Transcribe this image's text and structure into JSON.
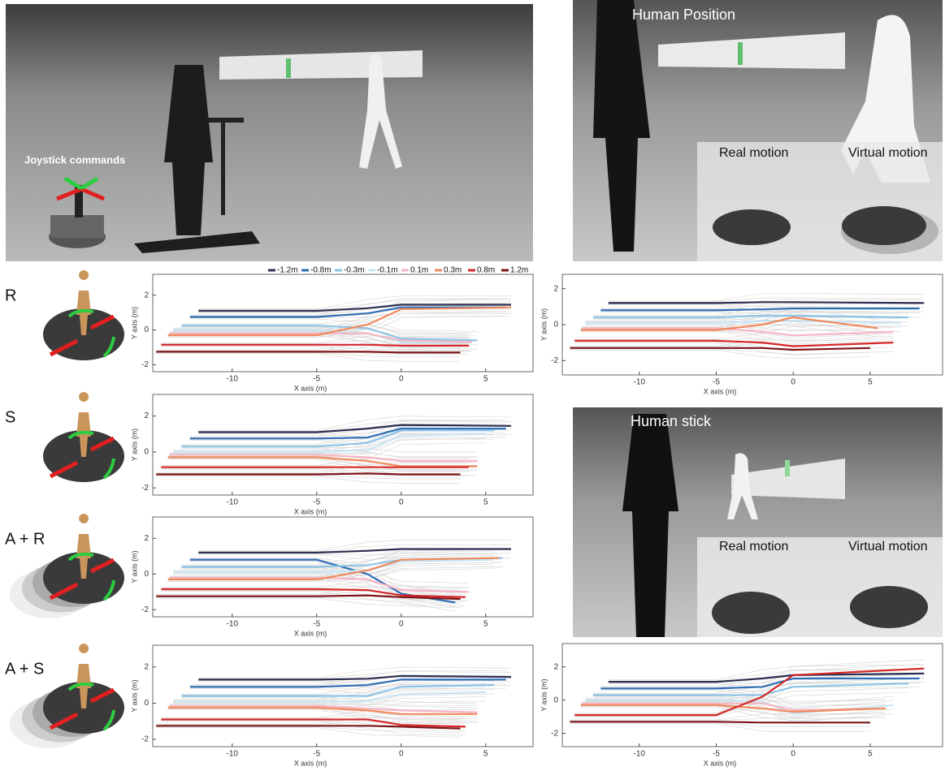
{
  "photos": {
    "joystick": "Joystick commands",
    "position": {
      "title": "Human Position",
      "real": "Real motion",
      "virtual": "Virtual motion"
    },
    "stick": {
      "title": "Human stick",
      "real": "Real motion",
      "virtual": "Virtual motion"
    }
  },
  "legend": [
    {
      "name": "-1.2m",
      "color": "#2b2f4f"
    },
    {
      "name": "-0.8m",
      "color": "#2f6db5"
    },
    {
      "name": "-0.3m",
      "color": "#8fc3e6"
    },
    {
      "name": "-0.1m",
      "color": "#c8e4f4"
    },
    {
      "name": "0.1m",
      "color": "#f4b6c2"
    },
    {
      "name": "0.3m",
      "color": "#f08a5d"
    },
    {
      "name": "0.8m",
      "color": "#d62728"
    },
    {
      "name": "1.2m",
      "color": "#7b1416"
    }
  ],
  "chart_data": [
    {
      "type": "line",
      "label": "R",
      "x_label": "X axis (m)",
      "y_label": "Y axis (m)",
      "xlim": [
        -14.7,
        7.8
      ],
      "ylim": [
        -2.4,
        3.2
      ],
      "xticks": [
        -10,
        -5,
        0,
        5
      ],
      "yticks": [
        -2,
        0,
        2
      ],
      "series": [
        {
          "x": [
            -12,
            -5,
            -2,
            0,
            6.5
          ],
          "values": [
            1.1,
            1.1,
            1.25,
            1.45,
            1.45
          ]
        },
        {
          "x": [
            -12.5,
            -5,
            -2,
            0,
            6.2
          ],
          "values": [
            0.75,
            0.75,
            0.95,
            1.3,
            1.3
          ]
        },
        {
          "x": [
            -13,
            -5,
            -2,
            0,
            4.5
          ],
          "values": [
            0.25,
            0.25,
            0.1,
            -0.5,
            -0.6
          ]
        },
        {
          "x": [
            -13.5,
            -5,
            -2,
            0,
            4
          ],
          "values": [
            0,
            0,
            -0.2,
            -0.7,
            -0.75
          ]
        },
        {
          "x": [
            -13.7,
            -5,
            -2,
            0,
            4.2
          ],
          "values": [
            -0.2,
            -0.2,
            -0.2,
            -0.6,
            -0.7
          ]
        },
        {
          "x": [
            -13.8,
            -5,
            -2,
            0,
            6.5
          ],
          "values": [
            -0.3,
            -0.3,
            0.3,
            1.2,
            1.3
          ]
        },
        {
          "x": [
            -14.2,
            -5,
            -2,
            0,
            4
          ],
          "values": [
            -0.85,
            -0.85,
            -0.85,
            -0.9,
            -0.9
          ]
        },
        {
          "x": [
            -14.5,
            -5,
            -2,
            0,
            3.5
          ],
          "values": [
            -1.25,
            -1.25,
            -1.25,
            -1.3,
            -1.3
          ]
        }
      ]
    },
    {
      "type": "line",
      "label": "S",
      "x_label": "X axis (m)",
      "y_label": "Y axis (m)",
      "xlim": [
        -14.7,
        7.8
      ],
      "ylim": [
        -2.4,
        3.2
      ],
      "xticks": [
        -10,
        -5,
        0,
        5
      ],
      "yticks": [
        -2,
        0,
        2
      ],
      "series": [
        {
          "x": [
            -12,
            -5,
            -2,
            0,
            6.5
          ],
          "values": [
            1.1,
            1.1,
            1.3,
            1.5,
            1.45
          ]
        },
        {
          "x": [
            -12.5,
            -5,
            -2,
            0,
            6.2
          ],
          "values": [
            0.75,
            0.75,
            0.8,
            1.3,
            1.3
          ]
        },
        {
          "x": [
            -13,
            -5,
            -2,
            0,
            5.5
          ],
          "values": [
            0.3,
            0.3,
            0.5,
            1.2,
            1.2
          ]
        },
        {
          "x": [
            -13.5,
            -5,
            -2,
            0,
            5
          ],
          "values": [
            0,
            0,
            0.1,
            0.9,
            1
          ]
        },
        {
          "x": [
            -13.7,
            -5,
            -2,
            0,
            4.5
          ],
          "values": [
            -0.15,
            -0.15,
            -0.3,
            -0.5,
            -0.5
          ]
        },
        {
          "x": [
            -13.8,
            -5,
            -2,
            0,
            4.5
          ],
          "values": [
            -0.3,
            -0.3,
            -0.5,
            -0.8,
            -0.8
          ]
        },
        {
          "x": [
            -14.2,
            -5,
            -2,
            0,
            4
          ],
          "values": [
            -0.85,
            -0.85,
            -0.85,
            -0.85,
            -0.85
          ]
        },
        {
          "x": [
            -14.5,
            -5,
            -2,
            0,
            3.5
          ],
          "values": [
            -1.25,
            -1.25,
            -1.2,
            -1.25,
            -1.25
          ]
        }
      ]
    },
    {
      "type": "line",
      "label": "A + R",
      "x_label": "X axis (m)",
      "y_label": "Y axis (m)",
      "xlim": [
        -14.7,
        7.8
      ],
      "ylim": [
        -2.4,
        3.2
      ],
      "xticks": [
        -10,
        -5,
        0,
        5
      ],
      "yticks": [
        -2,
        0,
        2
      ],
      "series": [
        {
          "x": [
            -12,
            -5,
            -2,
            0,
            6.5
          ],
          "values": [
            1.2,
            1.2,
            1.3,
            1.4,
            1.4
          ]
        },
        {
          "x": [
            -12.5,
            -5,
            -2,
            0,
            3.2
          ],
          "values": [
            0.8,
            0.8,
            0,
            -1.1,
            -1.6
          ]
        },
        {
          "x": [
            -13,
            -5,
            -2,
            0,
            6
          ],
          "values": [
            0.4,
            0.4,
            0.5,
            0.8,
            0.9
          ]
        },
        {
          "x": [
            -13.5,
            -5,
            -2,
            0,
            5.5
          ],
          "values": [
            0.1,
            0.1,
            0.2,
            0.7,
            0.8
          ]
        },
        {
          "x": [
            -13.7,
            -5,
            -2,
            0,
            4
          ],
          "values": [
            -0.2,
            -0.2,
            -0.3,
            -0.9,
            -1
          ]
        },
        {
          "x": [
            -13.8,
            -5,
            -2,
            0,
            5.8
          ],
          "values": [
            -0.3,
            -0.3,
            0.2,
            0.8,
            0.9
          ]
        },
        {
          "x": [
            -14.2,
            -5,
            -2,
            0,
            3.8
          ],
          "values": [
            -0.85,
            -0.85,
            -0.9,
            -1.2,
            -1.3
          ]
        },
        {
          "x": [
            -14.5,
            -5,
            -2,
            0,
            3.5
          ],
          "values": [
            -1.25,
            -1.25,
            -1.2,
            -1.3,
            -1.4
          ]
        }
      ]
    },
    {
      "type": "line",
      "label": "A + S",
      "x_label": "X axis (m)",
      "y_label": "Y axis (m)",
      "xlim": [
        -14.7,
        7.8
      ],
      "ylim": [
        -2.4,
        3.2
      ],
      "xticks": [
        -10,
        -5,
        0,
        5
      ],
      "yticks": [
        -2,
        0,
        2
      ],
      "series": [
        {
          "x": [
            -12,
            -5,
            -2,
            0,
            6.5
          ],
          "values": [
            1.3,
            1.3,
            1.35,
            1.5,
            1.45
          ]
        },
        {
          "x": [
            -12.5,
            -5,
            -2,
            0,
            6.2
          ],
          "values": [
            0.9,
            0.9,
            1,
            1.3,
            1.3
          ]
        },
        {
          "x": [
            -13,
            -5,
            -2,
            0,
            5.5
          ],
          "values": [
            0.4,
            0.4,
            0.4,
            0.9,
            1
          ]
        },
        {
          "x": [
            -13.5,
            -5,
            -2,
            0,
            5
          ],
          "values": [
            0.1,
            0.1,
            0.1,
            0.5,
            0.6
          ]
        },
        {
          "x": [
            -13.7,
            -5,
            -2,
            0,
            4.5
          ],
          "values": [
            -0.15,
            -0.15,
            -0.3,
            -0.4,
            -0.5
          ]
        },
        {
          "x": [
            -13.8,
            -5,
            -2,
            0,
            4.5
          ],
          "values": [
            -0.25,
            -0.25,
            -0.4,
            -0.6,
            -0.6
          ]
        },
        {
          "x": [
            -14.2,
            -5,
            -2,
            0,
            3.8
          ],
          "values": [
            -0.9,
            -0.9,
            -0.9,
            -1.2,
            -1.3
          ]
        },
        {
          "x": [
            -14.5,
            -5,
            -2,
            0,
            3.5
          ],
          "values": [
            -1.25,
            -1.25,
            -1.25,
            -1.3,
            -1.4
          ]
        }
      ]
    },
    {
      "type": "line",
      "x_label": "X axis (m)",
      "y_label": "Y axis (m)",
      "xlim": [
        -15,
        9.7
      ],
      "ylim": [
        -2.8,
        2.8
      ],
      "xticks": [
        -10,
        -5,
        0,
        5
      ],
      "yticks": [
        -2,
        0,
        2
      ],
      "series": [
        {
          "x": [
            -12,
            -5,
            -2,
            0,
            8.5
          ],
          "values": [
            1.2,
            1.2,
            1.25,
            1.25,
            1.2
          ]
        },
        {
          "x": [
            -12.5,
            -5,
            -2,
            0,
            8.2
          ],
          "values": [
            0.8,
            0.8,
            0.85,
            0.9,
            0.9
          ]
        },
        {
          "x": [
            -13,
            -5,
            -2,
            0,
            7.5
          ],
          "values": [
            0.4,
            0.4,
            0.5,
            0.5,
            0.4
          ]
        },
        {
          "x": [
            -13.5,
            -5,
            -2,
            0,
            7
          ],
          "values": [
            0.1,
            0.1,
            0.2,
            0.2,
            0.1
          ]
        },
        {
          "x": [
            -13.7,
            -5,
            -2,
            0,
            6.5
          ],
          "values": [
            -0.2,
            -0.2,
            -0.4,
            -0.6,
            -0.4
          ]
        },
        {
          "x": [
            -13.8,
            -5,
            -2,
            0,
            5.5
          ],
          "values": [
            -0.3,
            -0.3,
            0,
            0.4,
            -0.2
          ]
        },
        {
          "x": [
            -14.2,
            -5,
            -2,
            0,
            6.5
          ],
          "values": [
            -0.9,
            -0.9,
            -1,
            -1.2,
            -1
          ]
        },
        {
          "x": [
            -14.5,
            -5,
            -2,
            0,
            5
          ],
          "values": [
            -1.3,
            -1.3,
            -1.3,
            -1.4,
            -1.3
          ]
        }
      ]
    },
    {
      "type": "line",
      "x_label": "X axis (m)",
      "y_label": "Y axis (m)",
      "xlim": [
        -15,
        9.7
      ],
      "ylim": [
        -2.8,
        3.4
      ],
      "xticks": [
        -10,
        -5,
        0,
        5
      ],
      "yticks": [
        -2,
        0,
        2
      ],
      "series": [
        {
          "x": [
            -12,
            -5,
            -2,
            0,
            8.5
          ],
          "values": [
            1.1,
            1.1,
            1.3,
            1.5,
            1.6
          ]
        },
        {
          "x": [
            -12.5,
            -5,
            -2,
            0,
            8.2
          ],
          "values": [
            0.7,
            0.7,
            0.8,
            1.3,
            1.3
          ]
        },
        {
          "x": [
            -13,
            -5,
            -2,
            0,
            7.5
          ],
          "values": [
            0.3,
            0.3,
            0.3,
            0.8,
            1
          ]
        },
        {
          "x": [
            -13.5,
            -5,
            -2,
            0,
            6.5
          ],
          "values": [
            0,
            0,
            -0.1,
            -0.8,
            -0.3
          ]
        },
        {
          "x": [
            -13.7,
            -5,
            -2,
            0,
            6
          ],
          "values": [
            -0.2,
            -0.2,
            -0.2,
            -0.6,
            -0.5
          ]
        },
        {
          "x": [
            -13.8,
            -5,
            -2,
            0,
            6
          ],
          "values": [
            -0.3,
            -0.3,
            -0.5,
            -0.7,
            -0.5
          ]
        },
        {
          "x": [
            -14.2,
            -5,
            -2,
            0,
            8.5
          ],
          "values": [
            -0.9,
            -0.9,
            0.2,
            1.5,
            1.9
          ]
        },
        {
          "x": [
            -14.5,
            -5,
            -2,
            0,
            5
          ],
          "values": [
            -1.3,
            -1.3,
            -1.35,
            -1.35,
            -1.35
          ]
        }
      ]
    }
  ]
}
